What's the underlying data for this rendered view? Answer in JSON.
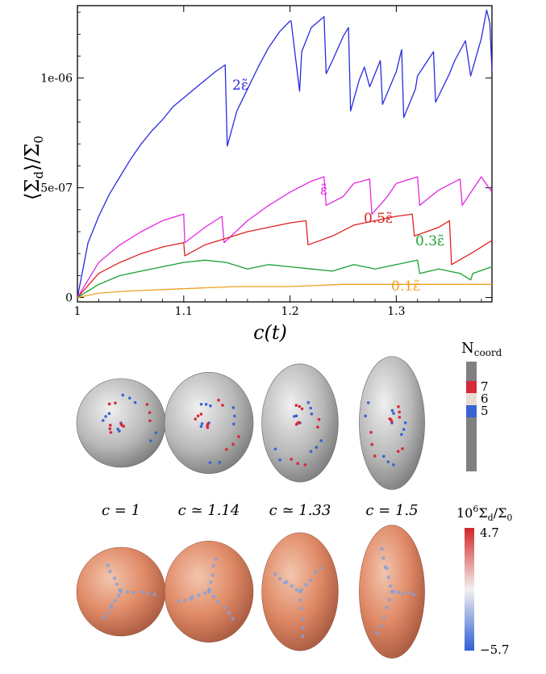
{
  "chart_data": {
    "type": "line",
    "xlabel": "c(t)",
    "ylabel": "⟨Σ_d⟩/Σ_0",
    "xlim": [
      1.0,
      1.39
    ],
    "ylim": [
      -2e-08,
      1.33e-06
    ],
    "grid": false,
    "x_ticks": [
      {
        "v": 1.0,
        "t": "1"
      },
      {
        "v": 1.1,
        "t": "1.1"
      },
      {
        "v": 1.2,
        "t": "1.2"
      },
      {
        "v": 1.3,
        "t": "1.3"
      }
    ],
    "y_ticks": [
      {
        "v": 0,
        "t": "0"
      },
      {
        "v": 5e-07,
        "t": "5e-07"
      },
      {
        "v": 1e-06,
        "t": "1e-06"
      }
    ],
    "series": [
      {
        "name": "2ε̃",
        "color": "#2a2ae0",
        "x": [
          1.0,
          1.01,
          1.02,
          1.03,
          1.04,
          1.05,
          1.06,
          1.07,
          1.08,
          1.09,
          1.1,
          1.11,
          1.12,
          1.13,
          1.139,
          1.141,
          1.15,
          1.16,
          1.17,
          1.18,
          1.19,
          1.2,
          1.201,
          1.209,
          1.211,
          1.22,
          1.232,
          1.234,
          1.24,
          1.25,
          1.255,
          1.257,
          1.265,
          1.27,
          1.275,
          1.285,
          1.287,
          1.3,
          1.305,
          1.307,
          1.318,
          1.32,
          1.335,
          1.337,
          1.345,
          1.35,
          1.355,
          1.365,
          1.37,
          1.38,
          1.385,
          1.388,
          1.39
        ],
        "y": [
          0.0,
          2.5e-07,
          3.7e-07,
          4.7e-07,
          5.5e-07,
          6.3e-07,
          7e-07,
          7.6e-07,
          8.1e-07,
          8.7e-07,
          9.1e-07,
          9.5e-07,
          9.9e-07,
          1.03e-06,
          1.06e-06,
          6.9e-07,
          8.5e-07,
          9.5e-07,
          1.05e-06,
          1.14e-06,
          1.21e-06,
          1.26e-06,
          1.26e-06,
          9.4e-07,
          1.12e-06,
          1.23e-06,
          1.28e-06,
          1.02e-06,
          1.08e-06,
          1.19e-06,
          1.23e-06,
          8.5e-07,
          9.9e-07,
          1.05e-06,
          9.6e-07,
          1.08e-06,
          8.8e-07,
          1.03e-06,
          1.13e-06,
          8.2e-07,
          9.5e-07,
          1.01e-06,
          1.12e-06,
          8.9e-07,
          9.7e-07,
          1.02e-06,
          1.08e-06,
          1.17e-06,
          1.01e-06,
          1.18e-06,
          1.31e-06,
          1.25e-06,
          1.03e-06
        ]
      },
      {
        "name": "ε̃",
        "color": "#e028e0",
        "x": [
          1.0,
          1.02,
          1.04,
          1.06,
          1.08,
          1.1,
          1.101,
          1.12,
          1.136,
          1.138,
          1.16,
          1.18,
          1.2,
          1.22,
          1.232,
          1.234,
          1.25,
          1.26,
          1.275,
          1.277,
          1.29,
          1.3,
          1.32,
          1.322,
          1.34,
          1.36,
          1.362,
          1.38,
          1.39
        ],
        "y": [
          0.0,
          1.6e-07,
          2.4e-07,
          3e-07,
          3.5e-07,
          3.8e-07,
          2.5e-07,
          3.2e-07,
          3.7e-07,
          2.5e-07,
          3.5e-07,
          4.2e-07,
          4.8e-07,
          5.3e-07,
          5.5e-07,
          4.2e-07,
          4.6e-07,
          5.2e-07,
          5.4e-07,
          3.8e-07,
          4.5e-07,
          5.2e-07,
          5.5e-07,
          4.2e-07,
          4.9e-07,
          5.4e-07,
          4.2e-07,
          5.5e-07,
          4.8e-07
        ]
      },
      {
        "name": "0.5ε̃",
        "color": "#e02020",
        "x": [
          1.0,
          1.02,
          1.04,
          1.06,
          1.08,
          1.1,
          1.101,
          1.12,
          1.14,
          1.16,
          1.18,
          1.2,
          1.215,
          1.217,
          1.24,
          1.26,
          1.28,
          1.3,
          1.315,
          1.317,
          1.34,
          1.35,
          1.352,
          1.37,
          1.39
        ],
        "y": [
          0.0,
          1.1e-07,
          1.6e-07,
          2e-07,
          2.3e-07,
          2.5e-07,
          1.9e-07,
          2.4e-07,
          2.7e-07,
          3e-07,
          3.2e-07,
          3.4e-07,
          3.5e-07,
          2.4e-07,
          2.8e-07,
          3.3e-07,
          3.5e-07,
          3.7e-07,
          3.8e-07,
          2.8e-07,
          3.2e-07,
          3.5e-07,
          1.5e-07,
          2e-07,
          2.6e-07
        ]
      },
      {
        "name": "0.3ε̃",
        "color": "#18a030",
        "x": [
          1.0,
          1.02,
          1.04,
          1.06,
          1.08,
          1.1,
          1.12,
          1.14,
          1.16,
          1.18,
          1.2,
          1.22,
          1.24,
          1.26,
          1.28,
          1.3,
          1.32,
          1.322,
          1.34,
          1.36,
          1.37,
          1.372,
          1.39
        ],
        "y": [
          0.0,
          6e-08,
          1e-07,
          1.2e-07,
          1.4e-07,
          1.6e-07,
          1.7e-07,
          1.6e-07,
          1.3e-07,
          1.5e-07,
          1.4e-07,
          1.3e-07,
          1.2e-07,
          1.5e-07,
          1.3e-07,
          1.5e-07,
          1.7e-07,
          1.1e-07,
          1.3e-07,
          1.1e-07,
          8e-08,
          1.1e-07,
          1.4e-07
        ]
      },
      {
        "name": "0.1ε̃",
        "color": "#f0a020",
        "x": [
          1.0,
          1.02,
          1.05,
          1.1,
          1.15,
          1.2,
          1.25,
          1.3,
          1.35,
          1.39
        ],
        "y": [
          0.0,
          2e-08,
          3e-08,
          4e-08,
          5e-08,
          5e-08,
          6e-08,
          6e-08,
          6e-08,
          6e-08
        ]
      }
    ]
  },
  "labels": {
    "s2": "2ε̃",
    "s1": "ε̃",
    "s05": "0.5ε̃",
    "s03": "0.3ε̃",
    "s01": "0.1ε̃",
    "xlabel": "c(t)",
    "ylabel_main": "⟨Σ",
    "ylabel_sub": "d",
    "ylabel_rest": "⟩/Σ",
    "ylabel_sub0": "0"
  },
  "panels": [
    {
      "label": "c = 1",
      "aspect": 1.0
    },
    {
      "label": "c ≃ 1.14",
      "aspect": 1.14
    },
    {
      "label": "c ≃ 1.33",
      "aspect": 1.33
    },
    {
      "label": "c = 1.5",
      "aspect": 1.5
    }
  ],
  "coord_legend": {
    "title_main": "N",
    "title_sub": "coord",
    "values": [
      "7",
      "6",
      "5"
    ],
    "colors": {
      "7": "#d8283c",
      "6": "#e8ddd4",
      "5": "#3a63d6",
      "bar": "#808080"
    }
  },
  "stress_legend": {
    "title_pre": "10",
    "title_exp": "6",
    "title_main": "Σ",
    "title_sub": "d",
    "title_rest": "/Σ",
    "title_sub0": "0",
    "max": "4.7",
    "min": "−5.7",
    "colors": {
      "high": "#d0262a",
      "mid": "#f4f0ef",
      "low": "#2d5fd6"
    }
  }
}
